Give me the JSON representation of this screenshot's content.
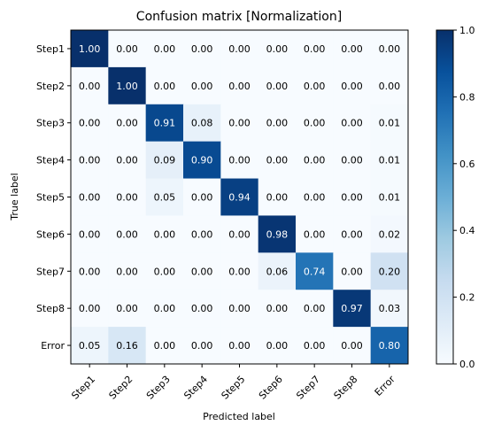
{
  "chart_data": {
    "type": "heatmap",
    "title": "Confusion matrix [Normalization]",
    "xlabel": "Predicted label",
    "ylabel": "True label",
    "x_categories": [
      "Step1",
      "Step2",
      "Step3",
      "Step4",
      "Step5",
      "Step6",
      "Step7",
      "Step8",
      "Error"
    ],
    "y_categories": [
      "Step1",
      "Step2",
      "Step3",
      "Step4",
      "Step5",
      "Step6",
      "Step7",
      "Step8",
      "Error"
    ],
    "values": [
      [
        1.0,
        0.0,
        0.0,
        0.0,
        0.0,
        0.0,
        0.0,
        0.0,
        0.0
      ],
      [
        0.0,
        1.0,
        0.0,
        0.0,
        0.0,
        0.0,
        0.0,
        0.0,
        0.0
      ],
      [
        0.0,
        0.0,
        0.91,
        0.08,
        0.0,
        0.0,
        0.0,
        0.0,
        0.01
      ],
      [
        0.0,
        0.0,
        0.09,
        0.9,
        0.0,
        0.0,
        0.0,
        0.0,
        0.01
      ],
      [
        0.0,
        0.0,
        0.05,
        0.0,
        0.94,
        0.0,
        0.0,
        0.0,
        0.01
      ],
      [
        0.0,
        0.0,
        0.0,
        0.0,
        0.0,
        0.98,
        0.0,
        0.0,
        0.02
      ],
      [
        0.0,
        0.0,
        0.0,
        0.0,
        0.0,
        0.06,
        0.74,
        0.0,
        0.2
      ],
      [
        0.0,
        0.0,
        0.0,
        0.0,
        0.0,
        0.0,
        0.0,
        0.97,
        0.03
      ],
      [
        0.05,
        0.16,
        0.0,
        0.0,
        0.0,
        0.0,
        0.0,
        0.0,
        0.8
      ]
    ],
    "value_format": "0.00",
    "colormap": "Blues",
    "colorbar": {
      "range": [
        0.0,
        1.0
      ],
      "ticks": [
        "0.0",
        "0.2",
        "0.4",
        "0.6",
        "0.8",
        "1.0"
      ]
    },
    "grid": false
  }
}
